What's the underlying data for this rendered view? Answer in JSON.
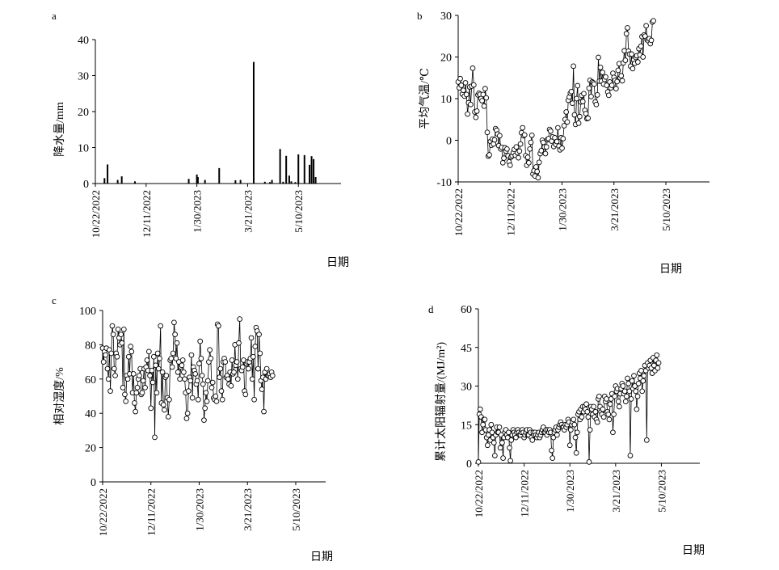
{
  "chart_data": [
    {
      "panel_label": "a",
      "type": "bar",
      "ylabel": "降水量/mm",
      "xlabel": "日期",
      "ylim": [
        0,
        40
      ],
      "yticks": [
        0,
        10,
        20,
        30,
        40
      ],
      "xticks": [
        "10/22/2022",
        "12/11/2022",
        "1/30/2023",
        "3/21/2023",
        "5/10/2023"
      ],
      "x_start": "2022-10-22",
      "x_end": "2023-06-21",
      "points": [
        {
          "date": "2022-10-31",
          "value": 1.5
        },
        {
          "date": "2022-11-03",
          "value": 5.3
        },
        {
          "date": "2022-11-13",
          "value": 1.0
        },
        {
          "date": "2022-11-17",
          "value": 2.0
        },
        {
          "date": "2022-11-30",
          "value": 0.6
        },
        {
          "date": "2023-01-22",
          "value": 1.3
        },
        {
          "date": "2023-01-30",
          "value": 2.5
        },
        {
          "date": "2023-01-31",
          "value": 1.8
        },
        {
          "date": "2023-02-07",
          "value": 1.0
        },
        {
          "date": "2023-02-21",
          "value": 4.3
        },
        {
          "date": "2023-03-09",
          "value": 0.9
        },
        {
          "date": "2023-03-14",
          "value": 1.0
        },
        {
          "date": "2023-03-27",
          "value": 33.8
        },
        {
          "date": "2023-04-07",
          "value": 0.5
        },
        {
          "date": "2023-04-12",
          "value": 0.4
        },
        {
          "date": "2023-04-14",
          "value": 1.0
        },
        {
          "date": "2023-04-22",
          "value": 9.6
        },
        {
          "date": "2023-04-25",
          "value": 0.5
        },
        {
          "date": "2023-04-28",
          "value": 7.7
        },
        {
          "date": "2023-05-01",
          "value": 2.2
        },
        {
          "date": "2023-05-03",
          "value": 0.6
        },
        {
          "date": "2023-05-07",
          "value": 0.4
        },
        {
          "date": "2023-05-10",
          "value": 8.1
        },
        {
          "date": "2023-05-16",
          "value": 7.9
        },
        {
          "date": "2023-05-21",
          "value": 5.2
        },
        {
          "date": "2023-05-23",
          "value": 7.6
        },
        {
          "date": "2023-05-25",
          "value": 6.8
        },
        {
          "date": "2023-05-27",
          "value": 1.8
        }
      ]
    },
    {
      "panel_label": "b",
      "type": "line",
      "ylabel": "平均气温/℃",
      "xlabel": "日期",
      "ylim": [
        -10,
        30
      ],
      "yticks": [
        -10,
        0,
        10,
        20,
        30
      ],
      "xticks": [
        "10/22/2022",
        "12/11/2022",
        "1/30/2023",
        "3/21/2023",
        "5/10/2023"
      ],
      "x_start": "2022-10-22",
      "x_end": "2023-06-21",
      "start_date": "2022-10-22",
      "values": [
        14.0,
        12.6,
        14.8,
        13.2,
        11.1,
        12.0,
        10.6,
        13.8,
        11.0,
        6.3,
        9.0,
        12.8,
        8.6,
        13.0,
        17.3,
        13.3,
        6.8,
        5.5,
        7.0,
        10.9,
        11.3,
        11.0,
        10.0,
        9.5,
        11.0,
        8.2,
        12.4,
        10.2,
        1.9,
        -3.8,
        -3.5,
        -0.3,
        -1.2,
        0.3,
        -0.9,
        0.1,
        2.8,
        2.4,
        1.5,
        -1.3,
        1.1,
        -2.1,
        -1.7,
        -5.4,
        -4.3,
        -1.8,
        -2.6,
        -2.1,
        -3.7,
        -5.2,
        -6.0,
        -4.0,
        -3.7,
        -3.0,
        -2.2,
        -3.6,
        -1.6,
        -3.0,
        -4.2,
        -2.6,
        -0.9,
        1.8,
        3.0,
        1.1,
        1.3,
        -3.7,
        -6.0,
        -4.1,
        -5.4,
        -2.1,
        -0.5,
        1.2,
        -8.1,
        -7.3,
        -8.6,
        -6.4,
        -7.5,
        -9.0,
        -5.3,
        -3.2,
        -2.5,
        0.0,
        -0.5,
        -1.6,
        -3.2,
        -1.6,
        0.2,
        0.4,
        2.6,
        2.2,
        -0.2,
        0.8,
        -1.5,
        0.6,
        -1.0,
        -0.3,
        3.0,
        -1.4,
        -2.3,
        0.6,
        -1.9,
        0.4,
        3.5,
        5.0,
        6.8,
        4.4,
        9.6,
        10.4,
        11.3,
        11.7,
        8.9,
        17.8,
        6.1,
        3.8,
        10.0,
        13.1,
        4.1,
        5.7,
        9.2,
        10.8,
        9.3,
        11.2,
        7.2,
        6.4,
        5.2,
        5.3,
        12.5,
        14.4,
        10.5,
        14.0,
        13.8,
        13.5,
        9.2,
        8.6,
        10.9,
        19.9,
        14.2,
        17.5,
        14.2,
        16.3,
        13.5,
        14.6,
        15.2,
        13.2,
        11.6,
        10.8,
        14.0,
        12.6,
        13.2,
        16.1,
        15.1,
        14.4,
        12.4,
        14.1,
        16.8,
        18.4,
        15.0,
        15.5,
        14.3,
        18.6,
        21.5,
        19.2,
        25.6,
        27.0,
        21.4,
        20.7,
        17.8,
        20.7,
        17.2,
        19.3,
        18.5,
        19.9,
        20.3,
        18.8,
        22.0,
        20.5,
        22.6,
        24.9,
        20.0,
        25.3,
        25.0,
        27.5,
        24.1,
        23.9,
        24.4,
        23.2,
        24.0,
        28.4,
        28.7
      ]
    },
    {
      "panel_label": "c",
      "type": "line",
      "ylabel": "相对湿度/%",
      "xlabel": "日期",
      "ylim": [
        0,
        100
      ],
      "yticks": [
        0,
        20,
        40,
        60,
        80,
        100
      ],
      "xticks": [
        "10/22/2022",
        "12/11/2022",
        "1/30/2023",
        "3/21/2023",
        "5/10/2023"
      ],
      "x_start": "2022-10-22",
      "x_end": "2023-06-10",
      "start_date": "2022-10-22",
      "values": [
        78,
        70,
        76,
        74,
        78,
        66,
        60,
        77,
        53,
        75,
        91,
        86,
        66,
        62,
        75,
        73,
        89,
        84,
        80,
        86,
        81,
        55,
        89,
        51,
        47,
        62,
        60,
        73,
        63,
        79,
        76,
        52,
        63,
        46,
        41,
        52,
        55,
        60,
        62,
        66,
        51,
        52,
        59,
        66,
        55,
        67,
        71,
        65,
        76,
        62,
        43,
        65,
        58,
        73,
        26,
        68,
        52,
        75,
        66,
        72,
        91,
        46,
        64,
        45,
        42,
        61,
        62,
        49,
        38,
        48,
        71,
        72,
        67,
        75,
        93,
        86,
        72,
        81,
        64,
        70,
        60,
        67,
        68,
        71,
        64,
        60,
        52,
        37,
        40,
        53,
        61,
        59,
        74,
        49,
        67,
        65,
        63,
        57,
        59,
        48,
        69,
        82,
        72,
        62,
        57,
        36,
        43,
        52,
        47,
        59,
        70,
        77,
        72,
        55,
        58,
        49,
        48,
        50,
        47,
        92,
        91,
        61,
        66,
        53,
        48,
        70,
        72,
        70,
        61,
        62,
        60,
        57,
        64,
        56,
        71,
        63,
        64,
        80,
        68,
        70,
        60,
        81,
        95,
        66,
        65,
        67,
        71,
        53,
        51,
        69,
        70,
        66,
        70,
        72,
        84,
        60,
        73,
        48,
        79,
        90,
        88,
        66,
        86,
        75,
        59,
        54,
        61,
        41,
        64,
        60,
        66,
        62,
        62,
        63,
        61,
        64,
        62
      ]
    },
    {
      "panel_label": "d",
      "type": "line",
      "ylabel": "累计太阳辐射量/(MJ/m²)",
      "xlabel": "日期",
      "ylim": [
        0,
        60
      ],
      "yticks": [
        0,
        15,
        30,
        45,
        60
      ],
      "xticks": [
        "10/22/2022",
        "12/11/2022",
        "1/30/2023",
        "3/21/2023",
        "5/10/2023"
      ],
      "x_start": "2022-10-22",
      "x_end": "2023-06-21",
      "start_date": "2022-10-22",
      "values": [
        0.5,
        19,
        21,
        18,
        12,
        15,
        17,
        17,
        13,
        10,
        7,
        11,
        13,
        9,
        15,
        12,
        10,
        8,
        3,
        11,
        14,
        12,
        12,
        14,
        6,
        11,
        8,
        2,
        10,
        12,
        13,
        11,
        10,
        12,
        6,
        1,
        9,
        11,
        13,
        12,
        11,
        10,
        12,
        13,
        12,
        11,
        11,
        12,
        13,
        12,
        10,
        11,
        12,
        13,
        11,
        11,
        13,
        12,
        10,
        9,
        12,
        11,
        12,
        11,
        10,
        11,
        12,
        10,
        11,
        12,
        13,
        14,
        12,
        12,
        13,
        11,
        13,
        12,
        13,
        12,
        5,
        2,
        10,
        12,
        13,
        14,
        11,
        13,
        14,
        15,
        16,
        15,
        14,
        14,
        13,
        15,
        14,
        15,
        17,
        16,
        7,
        13,
        15,
        16,
        17,
        15,
        10,
        4,
        12,
        19,
        20,
        17,
        21,
        18,
        22,
        20,
        22,
        21,
        23,
        20,
        18,
        0.5,
        13,
        22,
        21,
        19,
        22,
        18,
        20,
        17,
        16,
        25,
        26,
        22,
        20,
        19,
        21,
        18,
        26,
        24,
        25,
        20,
        19,
        17,
        23,
        25,
        27,
        12,
        19,
        26,
        30,
        28,
        29,
        24,
        22,
        27,
        29,
        31,
        30,
        27,
        28,
        24,
        26,
        33,
        31,
        28,
        3,
        25,
        32,
        29,
        34,
        30,
        28,
        21,
        26,
        31,
        35,
        33,
        36,
        28,
        32,
        34,
        38,
        36,
        9,
        39,
        37,
        38,
        40,
        37,
        35,
        41,
        38,
        36,
        40,
        42,
        37,
        39
      ]
    }
  ]
}
